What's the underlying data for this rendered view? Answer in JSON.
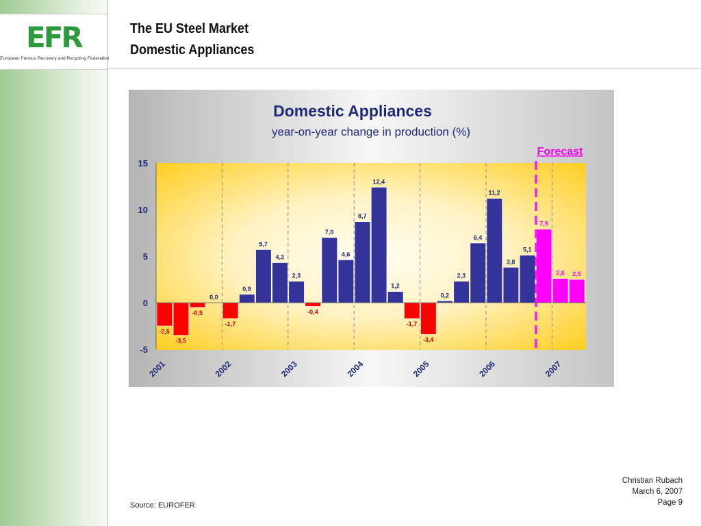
{
  "logo": {
    "mark": "EFR",
    "subtitle": "European Ferrous Recovery and Recycling Federation"
  },
  "header": {
    "title_line1": "The EU Steel Market",
    "title_line2": "Domestic Appliances"
  },
  "source": "Source: EUROFER",
  "footer": {
    "author": "Christian Rubach",
    "date": "March 6, 2007",
    "page": "Page 9"
  },
  "colors": {
    "actual_positive": "#333399",
    "actual_negative": "#ff0000",
    "forecast": "#ff00ff",
    "brand_green": "#2e9a3e"
  },
  "chart_data": {
    "type": "bar",
    "title": "Domestic Appliances",
    "subtitle": "year-on-year change in production (%)",
    "annotation": "Forecast",
    "ylim": [
      -5,
      15
    ],
    "yticks": [
      15,
      10,
      5,
      0,
      -5
    ],
    "year_labels": [
      "2001",
      "2002",
      "2003",
      "2004",
      "2005",
      "2006",
      "2007"
    ],
    "values": [
      -2.5,
      -3.5,
      -0.5,
      0.0,
      -1.7,
      0.9,
      5.7,
      4.3,
      2.3,
      -0.4,
      7.0,
      4.6,
      8.7,
      12.4,
      1.2,
      -1.7,
      -3.4,
      0.2,
      2.3,
      6.4,
      11.2,
      3.8,
      5.1,
      7.9,
      2.6,
      2.5
    ],
    "labels": [
      "-2,5",
      "-3,5",
      "-0,5",
      "0,0",
      "-1,7",
      "0,9",
      "5,7",
      "4,3",
      "2,3",
      "-0,4",
      "7,0",
      "4,6",
      "8,7",
      "12,4",
      "1,2",
      "-1,7",
      "-3,4",
      "0,2",
      "2,3",
      "6,4",
      "11,2",
      "3,8",
      "5,1",
      "7,9",
      "2,6",
      "2,5"
    ],
    "forecast": [
      false,
      false,
      false,
      false,
      false,
      false,
      false,
      false,
      false,
      false,
      false,
      false,
      false,
      false,
      false,
      false,
      false,
      false,
      false,
      false,
      false,
      false,
      false,
      true,
      true,
      true
    ]
  }
}
